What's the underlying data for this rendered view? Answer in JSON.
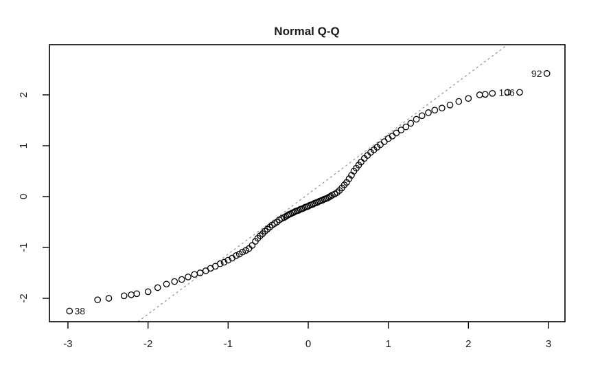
{
  "chart_data": {
    "type": "scatter",
    "title": "Normal Q-Q",
    "xlabel": "",
    "ylabel": "",
    "xlim": [
      -3.23,
      3.21
    ],
    "ylim": [
      -2.46,
      2.99
    ],
    "x_ticks": [
      -3,
      -2,
      -1,
      0,
      1,
      2,
      3
    ],
    "y_ticks": [
      -2,
      -1,
      0,
      1,
      2
    ],
    "grid": false,
    "legend": "none",
    "marker": {
      "shape": "open-circle",
      "radius_px": 4.2,
      "stroke_color": "#000000",
      "stroke_width": 1.3
    },
    "reference_line": {
      "slope": 1.18,
      "intercept": 0.05,
      "style": "dashed",
      "color": "#8f8f8f"
    },
    "frame_color": "#000000",
    "background_color": "#ffffff",
    "points": [
      [
        -2.63,
        -2.03
      ],
      [
        -2.49,
        -2.0
      ],
      [
        -2.3,
        -1.95
      ],
      [
        -2.21,
        -1.93
      ],
      [
        -2.14,
        -1.91
      ],
      [
        -2.0,
        -1.87
      ],
      [
        -1.88,
        -1.79
      ],
      [
        -1.77,
        -1.72
      ],
      [
        -1.67,
        -1.67
      ],
      [
        -1.58,
        -1.63
      ],
      [
        -1.5,
        -1.58
      ],
      [
        -1.42,
        -1.53
      ],
      [
        -1.35,
        -1.5
      ],
      [
        -1.28,
        -1.46
      ],
      [
        -1.22,
        -1.41
      ],
      [
        -1.16,
        -1.37
      ],
      [
        -1.1,
        -1.32
      ],
      [
        -1.05,
        -1.29
      ],
      [
        -1.0,
        -1.25
      ],
      [
        -0.95,
        -1.21
      ],
      [
        -0.9,
        -1.16
      ],
      [
        -0.86,
        -1.13
      ],
      [
        -0.82,
        -1.09
      ],
      [
        -0.78,
        -1.06
      ],
      [
        -0.74,
        -1.02
      ],
      [
        -0.7,
        -0.96
      ],
      [
        -0.66,
        -0.88
      ],
      [
        -0.63,
        -0.82
      ],
      [
        -0.6,
        -0.77
      ],
      [
        -0.57,
        -0.73
      ],
      [
        -0.54,
        -0.68
      ],
      [
        -0.51,
        -0.64
      ],
      [
        -0.48,
        -0.6
      ],
      [
        -0.45,
        -0.56
      ],
      [
        -0.42,
        -0.53
      ],
      [
        -0.39,
        -0.5
      ],
      [
        -0.36,
        -0.46
      ],
      [
        -0.33,
        -0.43
      ],
      [
        -0.3,
        -0.41
      ],
      [
        -0.28,
        -0.39
      ],
      [
        -0.26,
        -0.37
      ],
      [
        -0.24,
        -0.35
      ],
      [
        -0.22,
        -0.34
      ],
      [
        -0.2,
        -0.32
      ],
      [
        -0.18,
        -0.31
      ],
      [
        -0.16,
        -0.29
      ],
      [
        -0.14,
        -0.28
      ],
      [
        -0.12,
        -0.27
      ],
      [
        -0.1,
        -0.25
      ],
      [
        -0.08,
        -0.24
      ],
      [
        -0.06,
        -0.23
      ],
      [
        -0.04,
        -0.21
      ],
      [
        -0.02,
        -0.2
      ],
      [
        0.0,
        -0.19
      ],
      [
        0.02,
        -0.17
      ],
      [
        0.04,
        -0.16
      ],
      [
        0.06,
        -0.15
      ],
      [
        0.08,
        -0.13
      ],
      [
        0.1,
        -0.12
      ],
      [
        0.12,
        -0.11
      ],
      [
        0.14,
        -0.09
      ],
      [
        0.16,
        -0.08
      ],
      [
        0.18,
        -0.07
      ],
      [
        0.2,
        -0.05
      ],
      [
        0.22,
        -0.04
      ],
      [
        0.24,
        -0.03
      ],
      [
        0.26,
        -0.01
      ],
      [
        0.28,
        0.01
      ],
      [
        0.3,
        0.03
      ],
      [
        0.33,
        0.05
      ],
      [
        0.36,
        0.08
      ],
      [
        0.39,
        0.12
      ],
      [
        0.42,
        0.17
      ],
      [
        0.45,
        0.23
      ],
      [
        0.48,
        0.28
      ],
      [
        0.51,
        0.35
      ],
      [
        0.54,
        0.42
      ],
      [
        0.57,
        0.5
      ],
      [
        0.6,
        0.56
      ],
      [
        0.63,
        0.62
      ],
      [
        0.66,
        0.68
      ],
      [
        0.7,
        0.75
      ],
      [
        0.74,
        0.81
      ],
      [
        0.78,
        0.87
      ],
      [
        0.82,
        0.92
      ],
      [
        0.86,
        0.97
      ],
      [
        0.9,
        1.02
      ],
      [
        0.95,
        1.08
      ],
      [
        1.0,
        1.14
      ],
      [
        1.05,
        1.19
      ],
      [
        1.1,
        1.25
      ],
      [
        1.16,
        1.31
      ],
      [
        1.22,
        1.37
      ],
      [
        1.28,
        1.44
      ],
      [
        1.35,
        1.52
      ],
      [
        1.42,
        1.59
      ],
      [
        1.5,
        1.65
      ],
      [
        1.58,
        1.7
      ],
      [
        1.67,
        1.74
      ],
      [
        1.77,
        1.8
      ],
      [
        1.88,
        1.87
      ],
      [
        2.0,
        1.93
      ],
      [
        2.14,
        2.0
      ],
      [
        2.21,
        2.01
      ],
      [
        2.3,
        2.03
      ],
      [
        2.49,
        2.05
      ]
    ],
    "labeled_points": [
      {
        "label": "38",
        "x": -2.98,
        "y": -2.25,
        "label_side": "right"
      },
      {
        "label": "106",
        "x": 2.64,
        "y": 2.05,
        "label_side": "left"
      },
      {
        "label": "92",
        "x": 2.98,
        "y": 2.42,
        "label_side": "left"
      }
    ]
  }
}
